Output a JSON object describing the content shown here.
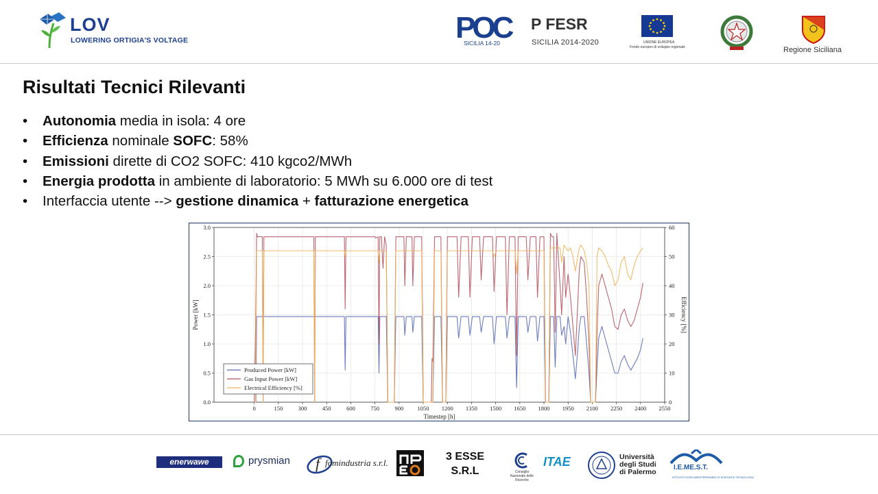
{
  "header": {
    "logo": {
      "title": "LOV",
      "subtitle": "LOWERING ORTIGIA'S VOLTAGE"
    },
    "partners": {
      "poc": {
        "text": "POC",
        "sub": "SICILIA 14-20"
      },
      "fesr": {
        "text": "P FESR",
        "sub": "SICILIA 2014-2020"
      },
      "eu": {
        "line1": "UNIONE EUROPEA",
        "line2": "Fondo europeo di sviluppo regionale"
      },
      "regione": {
        "text": "Regione Siciliana"
      }
    }
  },
  "slide": {
    "title": "Risultati Tecnici Rilevanti",
    "bullets": [
      {
        "b1": "Autonomia",
        "t1": " media in isola: 4 ore"
      },
      {
        "b1": "Efficienza",
        "t1": " nominale ",
        "b2": "SOFC",
        "t2": ": 58%"
      },
      {
        "b1": "Emissioni",
        "t1": " dirette di CO2 SOFC: 410 kgco2/MWh"
      },
      {
        "b1": "Energia prodotta",
        "t1": " in ambiente di laboratorio: 5 MWh su 6.000 ore di test"
      },
      {
        "t0": "Interfaccia utente --> ",
        "b1": "gestione dinamica",
        "t1": " + ",
        "b2": "fatturazione energetica"
      }
    ]
  },
  "chart_data": {
    "type": "line",
    "xlabel": "Timestep [h]",
    "ylabel": "Power [kW]",
    "y2label": "Efficiency [%]",
    "xlim": [
      -250,
      2550
    ],
    "ylim": [
      0,
      3.0
    ],
    "y2lim": [
      0,
      60
    ],
    "x_ticks": [
      0,
      150,
      300,
      450,
      600,
      750,
      900,
      1050,
      1200,
      1350,
      1500,
      1650,
      1800,
      1950,
      2100,
      2250,
      2400,
      2550
    ],
    "y_ticks": [
      "0.0",
      "0.5",
      "1.0",
      "1.5",
      "2.0",
      "2.5",
      "3.0"
    ],
    "y2_ticks": [
      "0",
      "10",
      "20",
      "30",
      "40",
      "50",
      "60"
    ],
    "grid": true,
    "legend": "bottom-left",
    "series": [
      {
        "name": "Produced Power [kW]",
        "axis": "left",
        "color": "#5b6db5",
        "points": [
          [
            0,
            0
          ],
          [
            10,
            0
          ],
          [
            15,
            1.47
          ],
          [
            560,
            1.47
          ],
          [
            565,
            0.55
          ],
          [
            570,
            1.47
          ],
          [
            770,
            1.47
          ],
          [
            775,
            0.5
          ],
          [
            780,
            1.47
          ],
          [
            820,
            1.47
          ],
          [
            830,
            0
          ],
          [
            870,
            0
          ],
          [
            880,
            1.47
          ],
          [
            930,
            1.47
          ],
          [
            935,
            1.15
          ],
          [
            945,
            1.47
          ],
          [
            980,
            1.47
          ],
          [
            985,
            1.2
          ],
          [
            995,
            1.47
          ],
          [
            1040,
            1.47
          ],
          [
            1050,
            0
          ],
          [
            1110,
            0
          ],
          [
            1120,
            1.47
          ],
          [
            1160,
            1.47
          ],
          [
            1170,
            0
          ],
          [
            1190,
            0
          ],
          [
            1200,
            1.47
          ],
          [
            1260,
            1.47
          ],
          [
            1270,
            1.1
          ],
          [
            1285,
            1.47
          ],
          [
            1330,
            1.47
          ],
          [
            1340,
            1.15
          ],
          [
            1355,
            1.47
          ],
          [
            1400,
            1.47
          ],
          [
            1410,
            1.2
          ],
          [
            1425,
            1.47
          ],
          [
            1480,
            1.47
          ],
          [
            1490,
            1.0
          ],
          [
            1505,
            1.47
          ],
          [
            1560,
            1.47
          ],
          [
            1570,
            1.1
          ],
          [
            1585,
            1.47
          ],
          [
            1620,
            1.47
          ],
          [
            1630,
            0.25
          ],
          [
            1640,
            1.47
          ],
          [
            1690,
            1.47
          ],
          [
            1700,
            1.2
          ],
          [
            1715,
            1.47
          ],
          [
            1750,
            1.47
          ],
          [
            1760,
            1.05
          ],
          [
            1775,
            1.47
          ],
          [
            1800,
            1.47
          ],
          [
            1810,
            0
          ],
          [
            1830,
            0
          ],
          [
            1840,
            1.47
          ],
          [
            1860,
            1.47
          ],
          [
            1870,
            0.6
          ],
          [
            1880,
            1.47
          ],
          [
            1900,
            1.47
          ],
          [
            1910,
            1.15
          ],
          [
            1925,
            1.3
          ],
          [
            1935,
            1.0
          ],
          [
            1950,
            1.47
          ],
          [
            1965,
            1.2
          ],
          [
            1980,
            0.8
          ],
          [
            1995,
            0.4
          ],
          [
            2010,
            0.9
          ],
          [
            2020,
            1.3
          ],
          [
            2030,
            1.47
          ],
          [
            2050,
            1.47
          ],
          [
            2065,
            1.0
          ],
          [
            2080,
            0.5
          ],
          [
            2090,
            0
          ],
          [
            2120,
            0
          ],
          [
            2130,
            0.6
          ],
          [
            2140,
            1.1
          ],
          [
            2160,
            1.3
          ],
          [
            2180,
            1.1
          ],
          [
            2200,
            0.9
          ],
          [
            2220,
            0.7
          ],
          [
            2240,
            0.5
          ],
          [
            2260,
            0.5
          ],
          [
            2280,
            0.7
          ],
          [
            2300,
            0.8
          ],
          [
            2320,
            0.65
          ],
          [
            2340,
            0.55
          ],
          [
            2360,
            0.65
          ],
          [
            2380,
            0.75
          ],
          [
            2400,
            0.9
          ],
          [
            2415,
            1.1
          ]
        ]
      },
      {
        "name": "Gas Input Power [kW]",
        "axis": "left",
        "color": "#b5535f",
        "points": [
          [
            0,
            0
          ],
          [
            8,
            1.15
          ],
          [
            15,
            2.9
          ],
          [
            20,
            2.84
          ],
          [
            50,
            2.84
          ],
          [
            55,
            0
          ],
          [
            60,
            2.84
          ],
          [
            370,
            2.84
          ],
          [
            375,
            0
          ],
          [
            380,
            2.84
          ],
          [
            560,
            2.84
          ],
          [
            565,
            1.6
          ],
          [
            570,
            2.84
          ],
          [
            750,
            2.84
          ],
          [
            755,
            2.82
          ],
          [
            770,
            2.84
          ],
          [
            775,
            1.0
          ],
          [
            780,
            2.84
          ],
          [
            790,
            2.84
          ],
          [
            800,
            2.3
          ],
          [
            810,
            2.84
          ],
          [
            820,
            2.7
          ],
          [
            830,
            0
          ],
          [
            870,
            0
          ],
          [
            880,
            2.84
          ],
          [
            930,
            2.84
          ],
          [
            935,
            2.0
          ],
          [
            945,
            2.84
          ],
          [
            980,
            2.84
          ],
          [
            985,
            2.0
          ],
          [
            995,
            2.84
          ],
          [
            1040,
            2.84
          ],
          [
            1050,
            0
          ],
          [
            1100,
            0
          ],
          [
            1105,
            0.75
          ],
          [
            1110,
            0.7
          ],
          [
            1120,
            2.84
          ],
          [
            1160,
            2.84
          ],
          [
            1170,
            0
          ],
          [
            1190,
            0
          ],
          [
            1200,
            2.84
          ],
          [
            1260,
            2.84
          ],
          [
            1270,
            1.8
          ],
          [
            1285,
            2.84
          ],
          [
            1330,
            2.84
          ],
          [
            1340,
            1.8
          ],
          [
            1355,
            2.84
          ],
          [
            1400,
            2.84
          ],
          [
            1410,
            2.1
          ],
          [
            1425,
            2.84
          ],
          [
            1480,
            2.84
          ],
          [
            1490,
            1.9
          ],
          [
            1505,
            2.84
          ],
          [
            1560,
            2.84
          ],
          [
            1570,
            1.5
          ],
          [
            1585,
            2.84
          ],
          [
            1620,
            2.84
          ],
          [
            1630,
            0.8
          ],
          [
            1640,
            2.84
          ],
          [
            1690,
            2.84
          ],
          [
            1700,
            2.1
          ],
          [
            1715,
            2.84
          ],
          [
            1750,
            2.84
          ],
          [
            1760,
            1.8
          ],
          [
            1775,
            2.84
          ],
          [
            1800,
            2.84
          ],
          [
            1810,
            0
          ],
          [
            1830,
            0
          ],
          [
            1840,
            2.9
          ],
          [
            1850,
            2.84
          ],
          [
            1860,
            2.84
          ],
          [
            1870,
            1.2
          ],
          [
            1880,
            2.9
          ],
          [
            1900,
            2.0
          ],
          [
            1910,
            1.5
          ],
          [
            1925,
            2.5
          ],
          [
            1935,
            1.8
          ],
          [
            1950,
            2.2
          ],
          [
            1965,
            1.8
          ],
          [
            1980,
            1.3
          ],
          [
            1995,
            0.8
          ],
          [
            2010,
            1.7
          ],
          [
            2020,
            2.3
          ],
          [
            2030,
            2.5
          ],
          [
            2050,
            2.4
          ],
          [
            2065,
            1.8
          ],
          [
            2080,
            1.0
          ],
          [
            2090,
            0
          ],
          [
            2120,
            0
          ],
          [
            2130,
            1.2
          ],
          [
            2140,
            2.0
          ],
          [
            2160,
            2.2
          ],
          [
            2180,
            2.0
          ],
          [
            2200,
            1.8
          ],
          [
            2220,
            1.6
          ],
          [
            2240,
            1.3
          ],
          [
            2260,
            1.25
          ],
          [
            2280,
            1.5
          ],
          [
            2300,
            1.6
          ],
          [
            2320,
            1.4
          ],
          [
            2340,
            1.3
          ],
          [
            2360,
            1.4
          ],
          [
            2380,
            1.6
          ],
          [
            2400,
            1.8
          ],
          [
            2415,
            2.05
          ]
        ]
      },
      {
        "name": "Electrical Efficiency [%]",
        "axis": "right",
        "color": "#f0b45a",
        "points": [
          [
            0,
            0
          ],
          [
            8,
            0
          ],
          [
            15,
            52
          ],
          [
            50,
            52
          ],
          [
            55,
            0
          ],
          [
            60,
            52
          ],
          [
            370,
            52
          ],
          [
            375,
            0
          ],
          [
            380,
            52
          ],
          [
            560,
            52
          ],
          [
            565,
            50
          ],
          [
            570,
            52
          ],
          [
            770,
            52
          ],
          [
            775,
            48
          ],
          [
            780,
            52
          ],
          [
            820,
            52
          ],
          [
            830,
            0
          ],
          [
            870,
            0
          ],
          [
            880,
            52
          ],
          [
            1040,
            52
          ],
          [
            1050,
            0
          ],
          [
            1110,
            0
          ],
          [
            1120,
            52
          ],
          [
            1160,
            52
          ],
          [
            1170,
            0
          ],
          [
            1190,
            0
          ],
          [
            1200,
            52
          ],
          [
            1480,
            52
          ],
          [
            1490,
            50
          ],
          [
            1505,
            52
          ],
          [
            1620,
            52
          ],
          [
            1630,
            44
          ],
          [
            1640,
            52
          ],
          [
            1800,
            52
          ],
          [
            1810,
            0
          ],
          [
            1830,
            0
          ],
          [
            1840,
            53
          ],
          [
            1900,
            53
          ],
          [
            1910,
            48
          ],
          [
            1925,
            54
          ],
          [
            1935,
            53
          ],
          [
            1950,
            52
          ],
          [
            1965,
            53
          ],
          [
            1980,
            50
          ],
          [
            1995,
            45
          ],
          [
            2010,
            50
          ],
          [
            2020,
            53
          ],
          [
            2030,
            54
          ],
          [
            2050,
            52
          ],
          [
            2065,
            48
          ],
          [
            2080,
            40
          ],
          [
            2090,
            0
          ],
          [
            2120,
            0
          ],
          [
            2130,
            50
          ],
          [
            2140,
            53
          ],
          [
            2160,
            52
          ],
          [
            2180,
            50
          ],
          [
            2200,
            47
          ],
          [
            2220,
            45
          ],
          [
            2240,
            40
          ],
          [
            2260,
            42
          ],
          [
            2280,
            48
          ],
          [
            2300,
            50
          ],
          [
            2320,
            44
          ],
          [
            2340,
            42
          ],
          [
            2360,
            47
          ],
          [
            2380,
            50
          ],
          [
            2400,
            52
          ],
          [
            2415,
            53
          ]
        ]
      }
    ]
  },
  "footer": {
    "enerwave": "enerwawe",
    "prysmian": "prysmian",
    "fomindustria": "fomindustria s.r.l.",
    "apeo": "APEO",
    "tresse": [
      "3 ESSE",
      "S.R.L"
    ],
    "cnr": "Consiglio Nazionale delle Ricerche",
    "itae": "ITAE",
    "unipa": [
      "Università",
      "degli Studi",
      "di Palermo"
    ],
    "iemest": "I.E.ME.S.T.",
    "iemest_sub": "ISTITUTO EURO-MEDITERRANEO DI SCIENZA E TECNOLOGIA"
  }
}
